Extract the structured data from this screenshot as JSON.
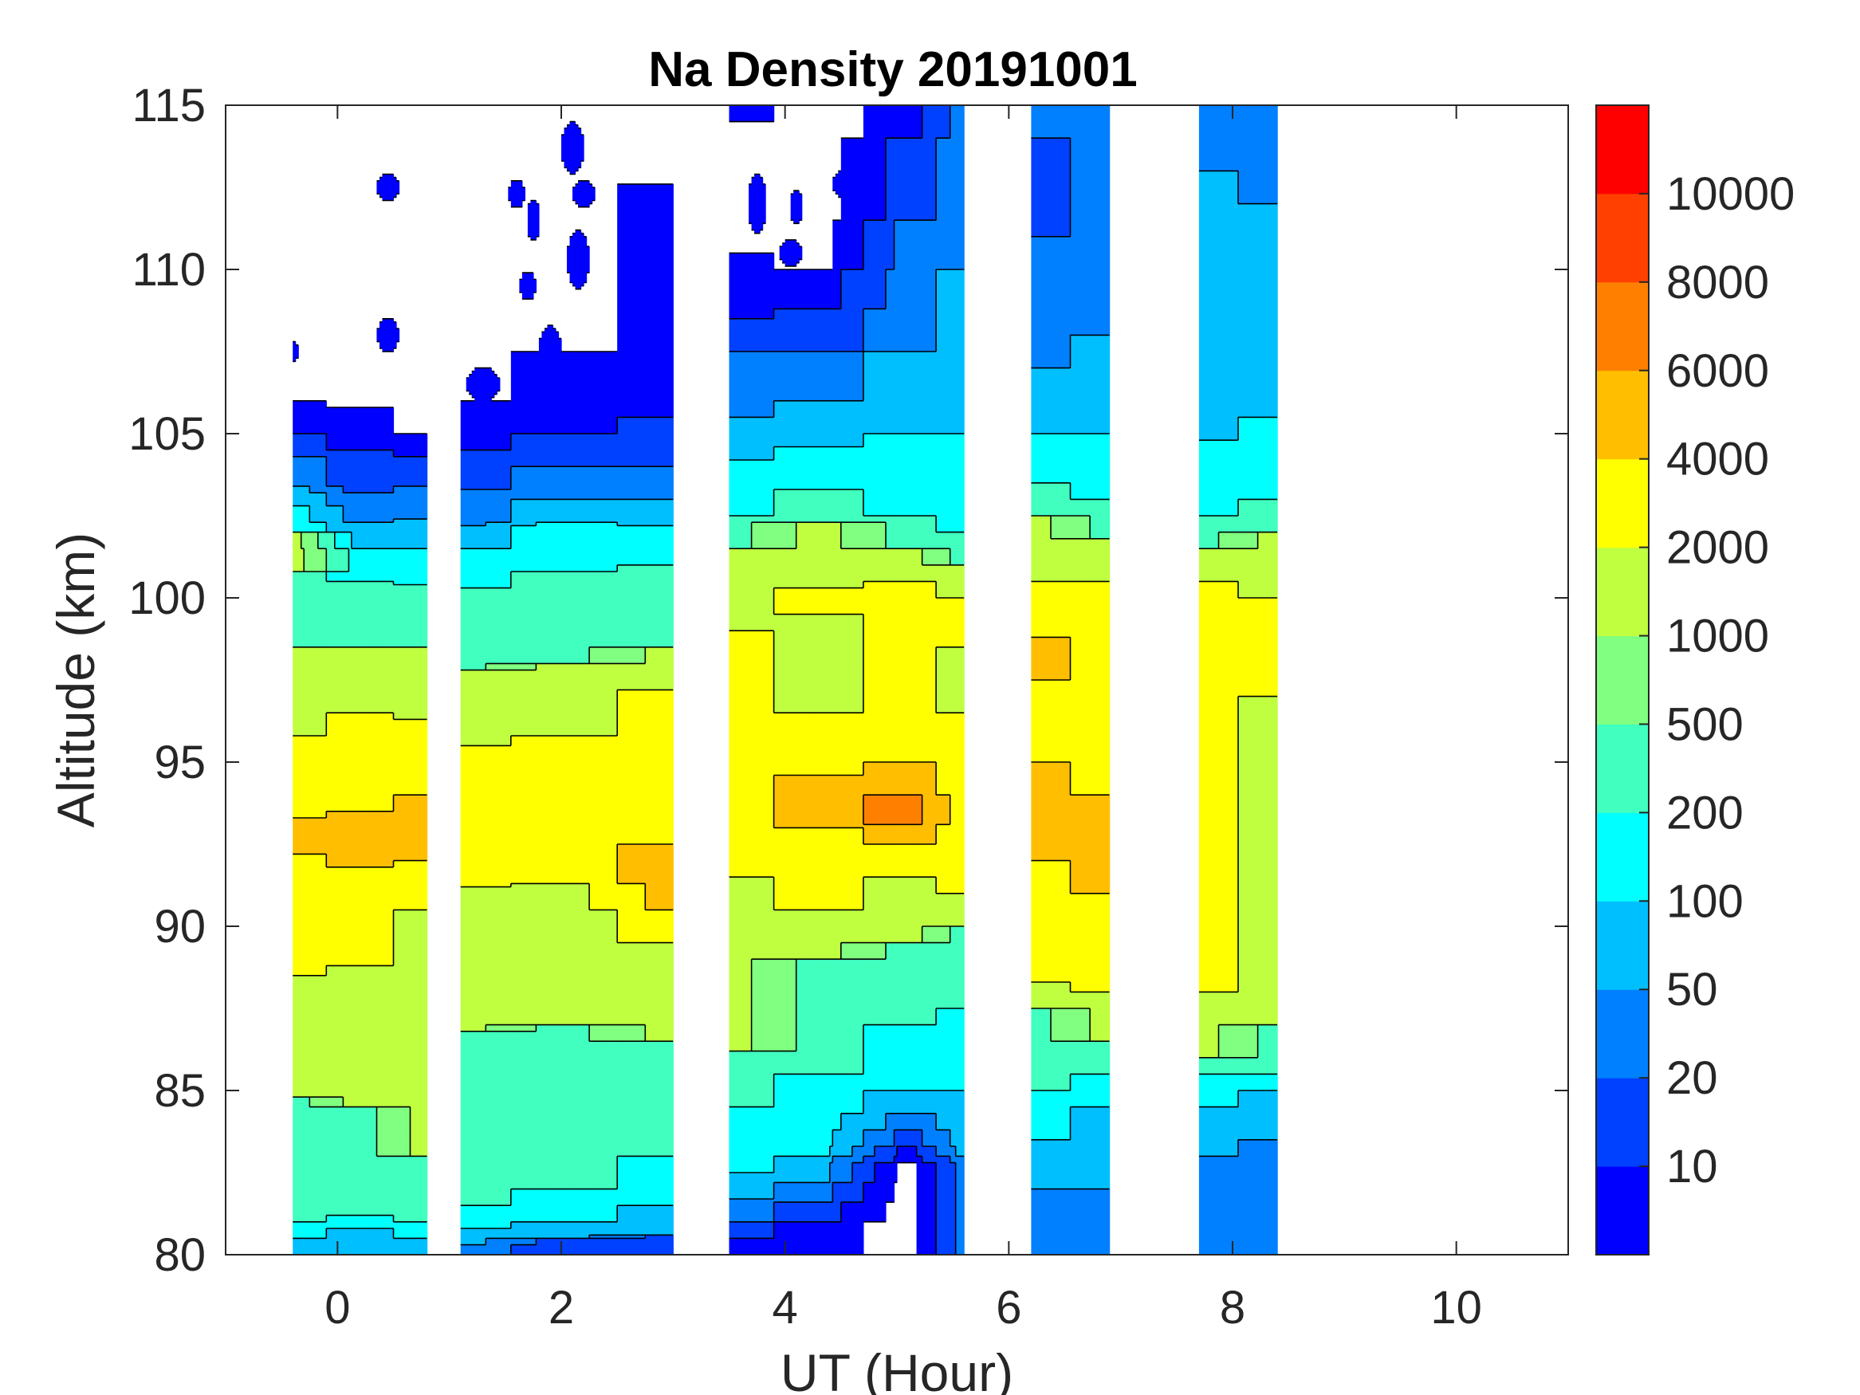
{
  "chart_data": {
    "type": "heatmap",
    "subtype": "filled-contour",
    "title": "Na Density 20191001",
    "xlabel": "UT (Hour)",
    "ylabel": "Altitude (km)",
    "xlim": [
      -1,
      11
    ],
    "ylim": [
      80,
      115
    ],
    "xticks": [
      "0",
      "2",
      "4",
      "6",
      "8",
      "10"
    ],
    "xtick_values": [
      0,
      2,
      4,
      6,
      8,
      10
    ],
    "yticks": [
      "80",
      "85",
      "90",
      "95",
      "100",
      "105",
      "110",
      "115"
    ],
    "ytick_values": [
      80,
      85,
      90,
      95,
      100,
      105,
      110,
      115
    ],
    "colorbar": {
      "tick_labels": [
        "10",
        "20",
        "50",
        "100",
        "200",
        "500",
        "1000",
        "2000",
        "4000",
        "6000",
        "8000",
        "10000"
      ],
      "band_colors": [
        "#0000FF",
        "#0040FF",
        "#0080FF",
        "#00BFFF",
        "#00FFFF",
        "#40FFBF",
        "#80FF80",
        "#BFFF40",
        "#FFFF00",
        "#FFBF00",
        "#FF8000",
        "#FF4000",
        "#FF0000"
      ]
    },
    "segments": [
      {
        "t_start": -0.4,
        "t_end": 0.8,
        "profiles": [
          {
            "t": -0.4,
            "bands": [
              [
                80,
                3
              ],
              [
                80.5,
                4
              ],
              [
                81,
                5
              ],
              [
                84.8,
                7
              ],
              [
                88.5,
                8
              ],
              [
                92.2,
                9
              ],
              [
                93.3,
                8
              ],
              [
                95.8,
                7
              ],
              [
                98.5,
                5
              ],
              [
                100.8,
                7
              ],
              [
                102,
                4
              ],
              [
                102.8,
                3
              ],
              [
                103.4,
                2
              ],
              [
                104.3,
                1
              ],
              [
                105,
                0
              ],
              [
                106,
                null
              ]
            ]
          },
          {
            "t": 0.2,
            "bands": [
              [
                80,
                3
              ],
              [
                80.8,
                4
              ],
              [
                81.2,
                5
              ],
              [
                84.5,
                7
              ],
              [
                88.8,
                8
              ],
              [
                91.8,
                9
              ],
              [
                93.5,
                8
              ],
              [
                96.5,
                7
              ],
              [
                98.5,
                5
              ],
              [
                100.5,
                4
              ],
              [
                101.5,
                3
              ],
              [
                102.3,
                2
              ],
              [
                103.2,
                1
              ],
              [
                104.5,
                0
              ],
              [
                105.8,
                null
              ]
            ]
          },
          {
            "t": 0.8,
            "bands": [
              [
                80,
                3
              ],
              [
                80.5,
                4
              ],
              [
                81,
                5
              ],
              [
                83,
                7
              ],
              [
                90.5,
                8
              ],
              [
                92,
                9
              ],
              [
                94,
                8
              ],
              [
                96.3,
                7
              ],
              [
                98.5,
                5
              ],
              [
                100.4,
                4
              ],
              [
                101.5,
                3
              ],
              [
                102.4,
                2
              ],
              [
                103.4,
                1
              ],
              [
                104.3,
                0
              ],
              [
                105,
                null
              ]
            ]
          }
        ],
        "patches": [
          [
            0.45,
            112.5,
            0.1,
            0.4
          ],
          [
            0.45,
            108,
            0.1,
            0.5
          ],
          [
            -0.38,
            107.5,
            0.03,
            0.3
          ]
        ]
      },
      {
        "t_start": 1.1,
        "t_end": 3.0,
        "profiles": [
          {
            "t": 1.1,
            "bands": [
              [
                80,
                2
              ],
              [
                80.3,
                3
              ],
              [
                80.8,
                4
              ],
              [
                81.5,
                5
              ],
              [
                86.8,
                7
              ],
              [
                91.2,
                8
              ],
              [
                95.5,
                7
              ],
              [
                97.8,
                5
              ],
              [
                100.3,
                4
              ],
              [
                101.5,
                3
              ],
              [
                102.2,
                2
              ],
              [
                103.3,
                1
              ],
              [
                104.5,
                0
              ],
              [
                106,
                null
              ]
            ]
          },
          {
            "t": 2.0,
            "bands": [
              [
                80,
                1
              ],
              [
                80.5,
                3
              ],
              [
                81,
                4
              ],
              [
                82,
                5
              ],
              [
                87,
                7
              ],
              [
                91.3,
                8
              ],
              [
                95.8,
                7
              ],
              [
                98,
                5
              ],
              [
                100.8,
                4
              ],
              [
                102.3,
                3
              ],
              [
                103,
                2
              ],
              [
                104,
                1
              ],
              [
                105,
                0
              ],
              [
                107.5,
                null
              ]
            ]
          },
          {
            "t": 3.0,
            "bands": [
              [
                80,
                1
              ],
              [
                80.6,
                3
              ],
              [
                81.5,
                4
              ],
              [
                83,
                5
              ],
              [
                86.5,
                7
              ],
              [
                89.5,
                8
              ],
              [
                90.5,
                9
              ],
              [
                92.5,
                8
              ],
              [
                97.2,
                7
              ],
              [
                98.5,
                5
              ],
              [
                101,
                4
              ],
              [
                102.2,
                3
              ],
              [
                103,
                2
              ],
              [
                104,
                1
              ],
              [
                105.5,
                0
              ],
              [
                112.6,
                null
              ]
            ]
          }
        ],
        "patches": [
          [
            1.75,
            111.5,
            0.06,
            0.6
          ],
          [
            2.1,
            113.7,
            0.1,
            0.8
          ],
          [
            2.2,
            112.3,
            0.1,
            0.4
          ],
          [
            2.15,
            110.3,
            0.1,
            0.9
          ],
          [
            1.6,
            112.3,
            0.08,
            0.4
          ],
          [
            1.7,
            109.5,
            0.08,
            0.4
          ],
          [
            1.3,
            106.5,
            0.15,
            0.5
          ],
          [
            1.9,
            107.5,
            0.1,
            0.8
          ]
        ]
      },
      {
        "t_start": 3.5,
        "t_end": 5.6,
        "profiles": [
          {
            "t": 3.5,
            "bands": [
              [
                80,
                0
              ],
              [
                80.5,
                1
              ],
              [
                81,
                2
              ],
              [
                81.7,
                3
              ],
              [
                82.5,
                4
              ],
              [
                84.5,
                5
              ],
              [
                86.2,
                7
              ],
              [
                91.5,
                8
              ],
              [
                99,
                7
              ],
              [
                101.5,
                5
              ],
              [
                102.5,
                4
              ],
              [
                104.2,
                3
              ],
              [
                105.5,
                2
              ],
              [
                107.5,
                1
              ],
              [
                108.5,
                0
              ],
              [
                110.5,
                null
              ],
              [
                114.5,
                0
              ]
            ]
          },
          {
            "t": 4.3,
            "bands": [
              [
                80,
                0
              ],
              [
                81,
                1
              ],
              [
                81.6,
                2
              ],
              [
                82.2,
                3
              ],
              [
                83,
                4
              ],
              [
                85.5,
                5
              ],
              [
                89,
                7
              ],
              [
                90.5,
                8
              ],
              [
                93,
                9
              ],
              [
                94.6,
                8
              ],
              [
                96.5,
                7
              ],
              [
                99.5,
                8
              ],
              [
                100.3,
                7
              ],
              [
                102.3,
                5
              ],
              [
                103.3,
                4
              ],
              [
                104.6,
                3
              ],
              [
                106,
                2
              ],
              [
                107.5,
                1
              ],
              [
                108.8,
                0
              ],
              [
                110,
                null
              ]
            ]
          },
          {
            "t": 5.1,
            "bands": [
              [
                80,
                null
              ],
              [
                82.8,
                0
              ],
              [
                83.3,
                1
              ],
              [
                83.8,
                2
              ],
              [
                84.3,
                3
              ],
              [
                85,
                4
              ],
              [
                87,
                5
              ],
              [
                89.5,
                7
              ],
              [
                91.5,
                8
              ],
              [
                92.5,
                9
              ],
              [
                93.1,
                10
              ],
              [
                94,
                9
              ],
              [
                95,
                8
              ],
              [
                100.5,
                7
              ],
              [
                101.5,
                5
              ],
              [
                102.5,
                4
              ],
              [
                105,
                3
              ],
              [
                107.5,
                2
              ],
              [
                111.5,
                1
              ],
              [
                114,
                0
              ]
            ]
          },
          {
            "t": 5.6,
            "bands": [
              [
                80,
                2
              ],
              [
                83,
                3
              ],
              [
                85,
                4
              ],
              [
                87.5,
                5
              ],
              [
                90,
                7
              ],
              [
                91,
                8
              ],
              [
                96.5,
                7
              ],
              [
                98.5,
                8
              ],
              [
                100,
                7
              ],
              [
                101,
                5
              ],
              [
                102,
                4
              ],
              [
                105,
                3
              ],
              [
                110,
                2
              ]
            ]
          }
        ],
        "patches": [
          [
            3.75,
            112,
            0.08,
            0.9
          ],
          [
            4.1,
            111.9,
            0.06,
            0.5
          ],
          [
            4.5,
            112.6,
            0.07,
            0.4
          ],
          [
            4.05,
            110.5,
            0.1,
            0.4
          ],
          [
            4.65,
            111,
            0.07,
            0.4
          ]
        ]
      },
      {
        "t_start": 6.2,
        "t_end": 6.9,
        "profiles": [
          {
            "t": 6.2,
            "bands": [
              [
                80,
                2
              ],
              [
                82,
                3
              ],
              [
                83.5,
                4
              ],
              [
                85,
                5
              ],
              [
                87.5,
                7
              ],
              [
                88.3,
                8
              ],
              [
                92,
                9
              ],
              [
                95,
                8
              ],
              [
                97.5,
                9
              ],
              [
                98.8,
                8
              ],
              [
                100.5,
                7
              ],
              [
                102.5,
                5
              ],
              [
                103.5,
                4
              ],
              [
                105,
                3
              ],
              [
                107,
                2
              ],
              [
                111,
                1
              ],
              [
                114,
                2
              ]
            ]
          },
          {
            "t": 6.9,
            "bands": [
              [
                80,
                2
              ],
              [
                82,
                3
              ],
              [
                84.5,
                4
              ],
              [
                85.5,
                5
              ],
              [
                86.5,
                7
              ],
              [
                88,
                8
              ],
              [
                91,
                9
              ],
              [
                94,
                8
              ],
              [
                100.5,
                7
              ],
              [
                101.8,
                5
              ],
              [
                103,
                4
              ],
              [
                105,
                3
              ],
              [
                108,
                2
              ]
            ]
          }
        ],
        "patches": []
      },
      {
        "t_start": 7.7,
        "t_end": 8.4,
        "profiles": [
          {
            "t": 7.7,
            "bands": [
              [
                80,
                2
              ],
              [
                83,
                3
              ],
              [
                84.5,
                4
              ],
              [
                85.5,
                5
              ],
              [
                86,
                7
              ],
              [
                88,
                8
              ],
              [
                100.5,
                7
              ],
              [
                101.5,
                5
              ],
              [
                102.5,
                4
              ],
              [
                104.8,
                3
              ],
              [
                113,
                2
              ]
            ]
          },
          {
            "t": 8.4,
            "bands": [
              [
                80,
                2
              ],
              [
                83.5,
                3
              ],
              [
                85,
                4
              ],
              [
                85.5,
                5
              ],
              [
                87,
                7
              ],
              [
                97,
                8
              ],
              [
                100,
                7
              ],
              [
                102,
                5
              ],
              [
                103,
                4
              ],
              [
                105.5,
                3
              ],
              [
                112,
                2
              ]
            ]
          }
        ],
        "patches": []
      }
    ]
  }
}
